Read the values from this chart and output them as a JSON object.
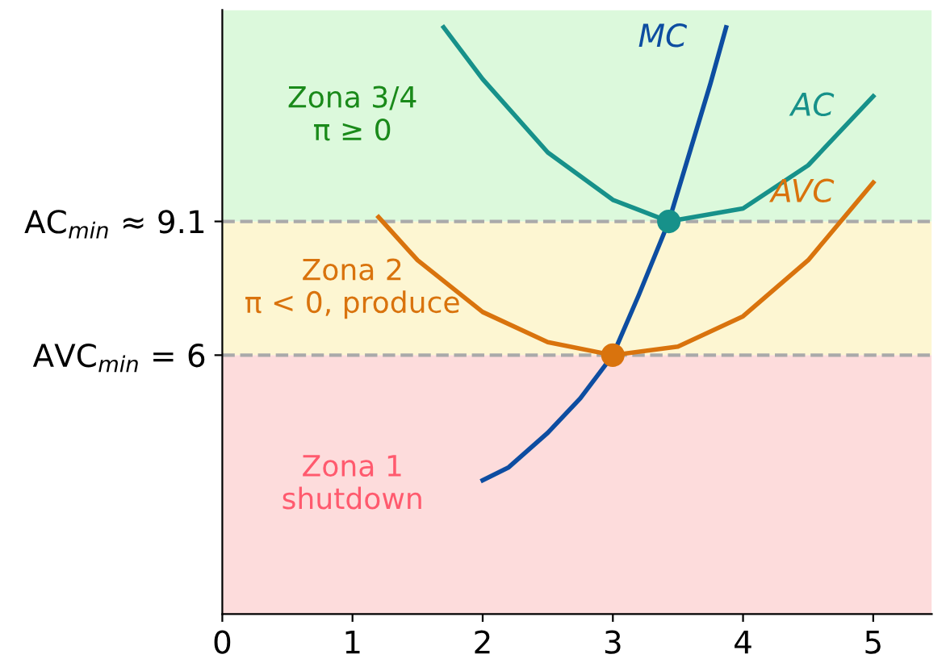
{
  "chart_data": {
    "type": "line",
    "xlim": [
      0,
      5.45
    ],
    "xticks": [
      0,
      1,
      2,
      3,
      4,
      5
    ],
    "ylim": [
      0,
      14
    ],
    "yticks": [
      {
        "value": 6,
        "label": "AVC$_{min}$ = 6"
      },
      {
        "value": 9.1,
        "label": "AC$_{min}$ ≈ 9.1"
      }
    ],
    "series": [
      {
        "name": "MC",
        "color": "#0d4da1",
        "x": [
          2,
          2.2,
          2.5,
          2.75,
          3,
          3.2,
          3.43,
          3.6,
          3.75,
          3.87
        ],
        "values": [
          3.1,
          3.4,
          4.2,
          5.0,
          6.0,
          7.4,
          9.1,
          10.8,
          12.3,
          13.6
        ]
      },
      {
        "name": "AC",
        "color": "#17918a",
        "x": [
          1.7,
          2,
          2.5,
          3,
          3.43,
          4,
          4.5,
          5
        ],
        "values": [
          13.6,
          12.4,
          10.7,
          9.6,
          9.1,
          9.4,
          10.4,
          12.0
        ]
      },
      {
        "name": "AVC",
        "color": "#d9730d",
        "x": [
          1.2,
          1.5,
          2,
          2.5,
          3,
          3.5,
          4,
          4.5,
          5
        ],
        "values": [
          9.2,
          8.2,
          7.0,
          6.3,
          6.0,
          6.2,
          6.9,
          8.2,
          10.0
        ]
      },
      {
        "type": "scatter",
        "color": "#d9730d",
        "x": [
          3
        ],
        "values": [
          6.0
        ]
      },
      {
        "type": "scatter",
        "color": "#17918a",
        "x": [
          3.43
        ],
        "values": [
          9.1
        ]
      }
    ],
    "ref_lines": [
      {
        "axis": "y",
        "value": 6,
        "color": "#aaaaaa",
        "line_style": "dashed"
      },
      {
        "axis": "y",
        "value": 9.1,
        "color": "#aaaaaa",
        "line_style": "dashed"
      }
    ],
    "bands": [
      {
        "axis": "y",
        "from": 0,
        "to": 6,
        "label": "Zona 1\nshutdown",
        "color": "#fddcdc"
      },
      {
        "axis": "y",
        "from": 6,
        "to": 9.1,
        "label": "Zona 2\nπ < 0, produce",
        "color": "#fdf6d2"
      },
      {
        "axis": "y",
        "from": 9.1,
        "to": 14,
        "label": "Zona 3/4\nπ ≥ 0",
        "color": "#dcf9dc"
      }
    ],
    "grid": false,
    "legend": false
  }
}
